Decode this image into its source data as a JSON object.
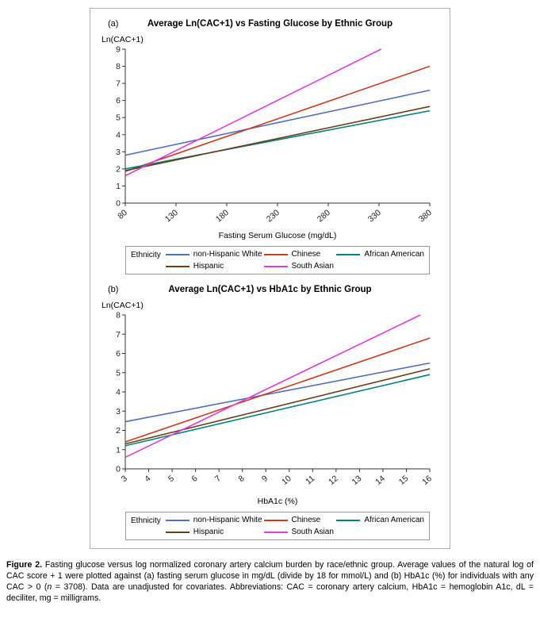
{
  "figure": {
    "panels": [
      {
        "tag": "(a)",
        "legend_title": "Ethnicity"
      },
      {
        "tag": "(b)",
        "legend_title": "Ethnicity"
      }
    ]
  },
  "caption": {
    "label": "Figure 2.",
    "text_1": " Fasting glucose versus log normalized coronary artery calcium burden by race/ethnic group. Average values of the natural log of CAC score + 1 were plotted against (a) fasting serum glucose in mg/dL (divide by 18 for mmol/L) and (b) HbA1c (%) for individuals with any CAC > 0 (",
    "n_italic": "n",
    "text_2": " = 3708). Data are unadjusted for covariates. Abbreviations: CAC = coronary artery calcium, HbA1c = hemoglobin A1c, dL = deciliter, mg = milligrams."
  },
  "chart_data": [
    {
      "type": "line",
      "title": "Average Ln(CAC+1) vs Fasting Glucose by Ethnic Group",
      "xlabel": "Fasting Serum Glucose (mg/dL)",
      "ylabel": "Ln(CAC+1)",
      "xlim": [
        80,
        380
      ],
      "ylim": [
        0,
        9
      ],
      "xticks": [
        80,
        130,
        180,
        230,
        280,
        330,
        380
      ],
      "yticks": [
        0,
        1,
        2,
        3,
        4,
        5,
        6,
        7,
        8,
        9
      ],
      "grid": false,
      "legend_position": "bottom",
      "series": [
        {
          "name": "non-Hispanic White",
          "color": "#4f6fbe",
          "points": [
            [
              80,
              2.8
            ],
            [
              380,
              6.6
            ]
          ]
        },
        {
          "name": "Chinese",
          "color": "#cb3a20",
          "points": [
            [
              80,
              1.85
            ],
            [
              380,
              8.0
            ]
          ]
        },
        {
          "name": "African American",
          "color": "#00837b",
          "points": [
            [
              80,
              2.0
            ],
            [
              380,
              5.4
            ]
          ]
        },
        {
          "name": "Hispanic",
          "color": "#6b3d17",
          "points": [
            [
              80,
              1.9
            ],
            [
              380,
              5.65
            ]
          ]
        },
        {
          "name": "South Asian",
          "color": "#dc3ddc",
          "points": [
            [
              80,
              1.6
            ],
            [
              332,
              9.0
            ]
          ]
        }
      ]
    },
    {
      "type": "line",
      "title": "Average Ln(CAC+1) vs HbA1c by Ethnic Group",
      "xlabel": "HbA1c (%)",
      "ylabel": "Ln(CAC+1)",
      "xlim": [
        3,
        16
      ],
      "ylim": [
        0,
        8
      ],
      "xticks": [
        3,
        4,
        5,
        6,
        7,
        8,
        9,
        10,
        11,
        12,
        13,
        14,
        15,
        16
      ],
      "yticks": [
        0,
        1,
        2,
        3,
        4,
        5,
        6,
        7,
        8
      ],
      "grid": false,
      "legend_position": "bottom",
      "series": [
        {
          "name": "non-Hispanic White",
          "color": "#4f6fbe",
          "points": [
            [
              3,
              2.45
            ],
            [
              16,
              5.5
            ]
          ]
        },
        {
          "name": "Chinese",
          "color": "#cb3a20",
          "points": [
            [
              3,
              1.4
            ],
            [
              16,
              6.8
            ]
          ]
        },
        {
          "name": "African American",
          "color": "#00837b",
          "points": [
            [
              3,
              1.2
            ],
            [
              16,
              4.9
            ]
          ]
        },
        {
          "name": "Hispanic",
          "color": "#6b3d17",
          "points": [
            [
              3,
              1.3
            ],
            [
              16,
              5.2
            ]
          ]
        },
        {
          "name": "South Asian",
          "color": "#dc3ddc",
          "points": [
            [
              3,
              0.6
            ],
            [
              15.6,
              8.0
            ]
          ]
        }
      ]
    }
  ]
}
